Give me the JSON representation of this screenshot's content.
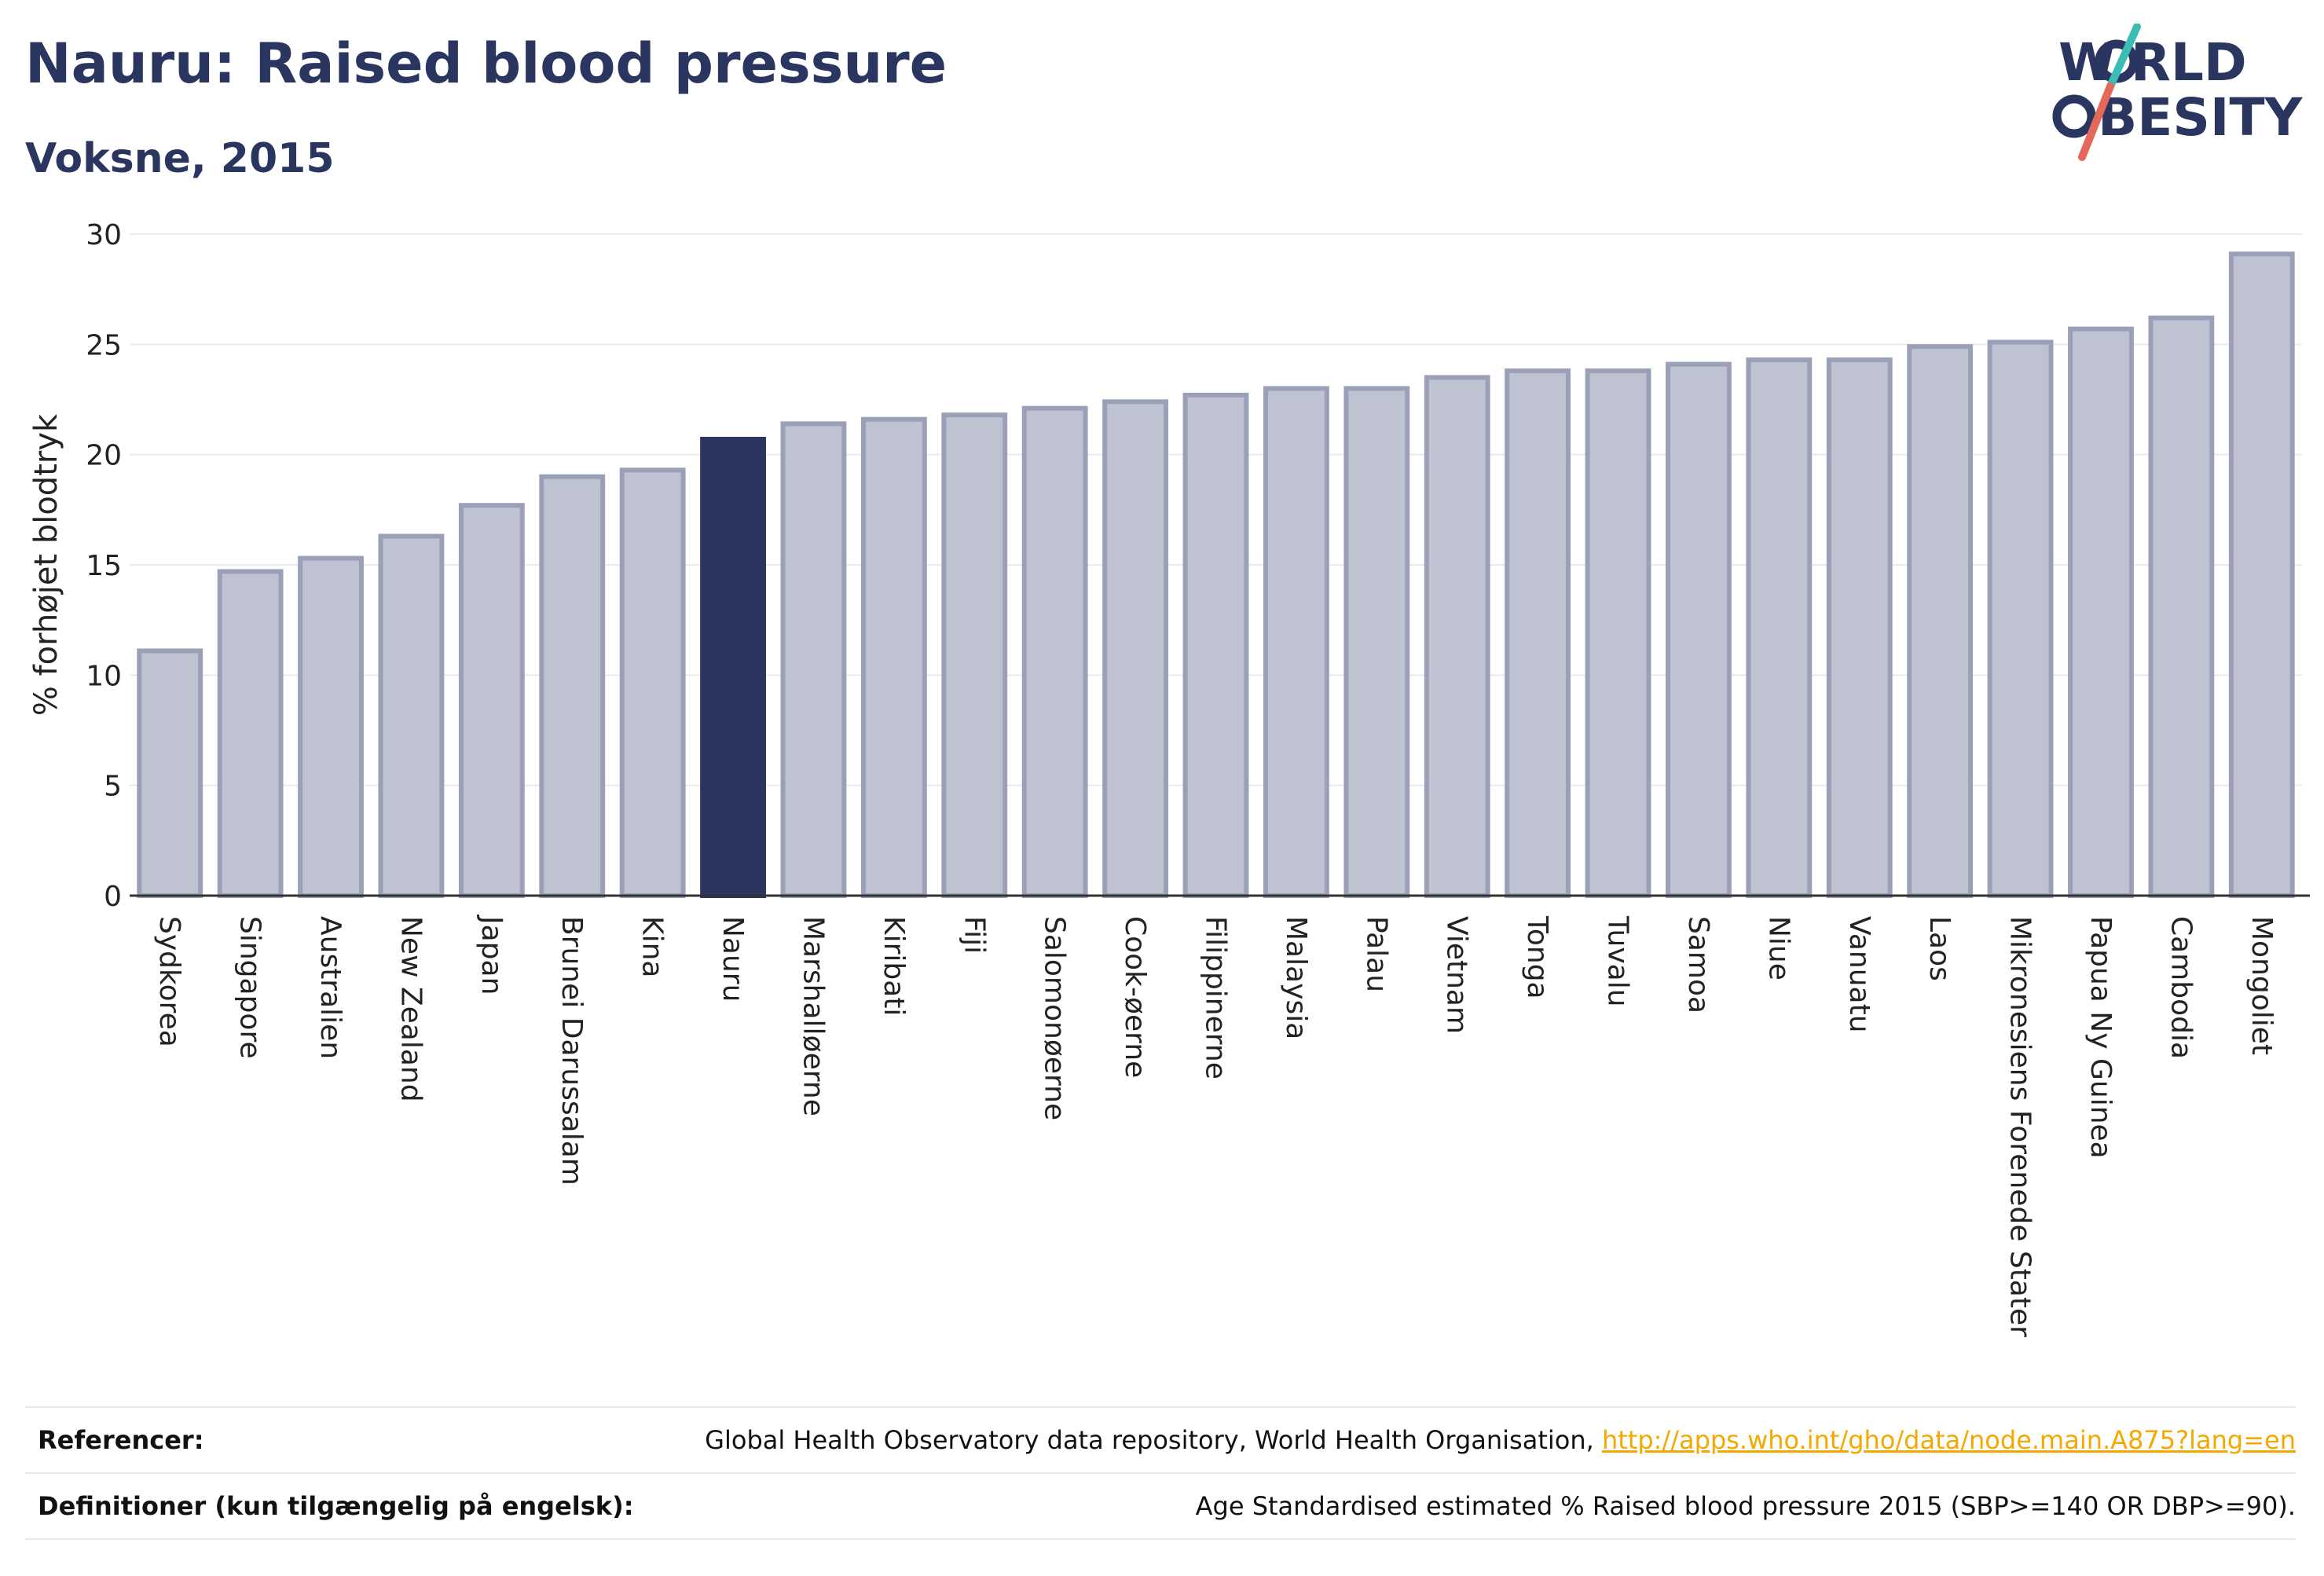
{
  "header": {
    "title": "Nauru: Raised blood pressure",
    "subtitle": "Voksne, 2015",
    "logo_text_1": "W RLD",
    "logo_text_2": "BESITY"
  },
  "chart_data": {
    "type": "bar",
    "title": "Nauru: Raised blood pressure",
    "subtitle": "Voksne, 2015",
    "ylabel": "% forhøjet blodtryk",
    "xlabel": "",
    "ylim": [
      0,
      30
    ],
    "yticks": [
      0,
      5,
      10,
      15,
      20,
      25,
      30
    ],
    "grid": true,
    "highlight": "Nauru",
    "categories": [
      "Sydkorea",
      "Singapore",
      "Australien",
      "New Zealand",
      "Japan",
      "Brunei Darussalam",
      "Kina",
      "Nauru",
      "Marshalløerne",
      "Kiribati",
      "Fiji",
      "Salomonøerne",
      "Cook-øerne",
      "Filippinerne",
      "Malaysia",
      "Palau",
      "Vietnam",
      "Tonga",
      "Tuvalu",
      "Samoa",
      "Niue",
      "Vanuatu",
      "Laos",
      "Mikronesiens Forenede Stater",
      "Papua Ny Guinea",
      "Cambodia",
      "Mongoliet"
    ],
    "values": [
      11.1,
      14.7,
      15.3,
      16.3,
      17.7,
      19.0,
      19.3,
      20.7,
      21.4,
      21.6,
      21.8,
      22.1,
      22.4,
      22.7,
      23.0,
      23.0,
      23.5,
      23.8,
      23.8,
      24.1,
      24.3,
      24.3,
      24.9,
      25.1,
      25.7,
      26.2,
      29.1
    ],
    "colors": {
      "bar": "#bfc3d1",
      "bar_border": "#9aa0b8",
      "highlight": "#2a3560"
    }
  },
  "footer": {
    "references_label": "Referencer:",
    "references_text": "Global Health Observatory data repository, World Health Organisation, ",
    "references_link": "http://apps.who.int/gho/data/node.main.A875?lang=en",
    "definitions_label": "Definitioner (kun tilgængelig på engelsk):",
    "definitions_text": "Age Standardised estimated % Raised blood pressure 2015 (SBP>=140 OR DBP>=90)."
  }
}
